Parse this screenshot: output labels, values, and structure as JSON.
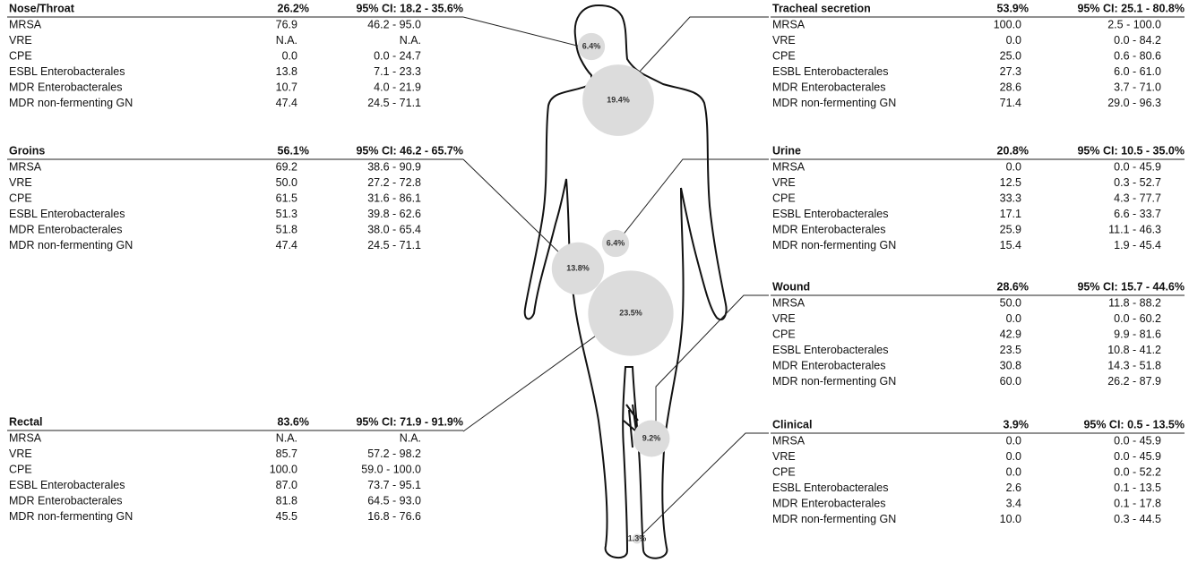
{
  "panels": [
    {
      "title": "Nose/Throat",
      "percent": "26.2%",
      "ci": "95% CI: 18.2 -  35.6%",
      "rows": [
        [
          "MRSA",
          "76.9",
          "46.2 -  95.0"
        ],
        [
          "VRE",
          "N.A.",
          "N.A."
        ],
        [
          "CPE",
          "0.0",
          "0.0 -  24.7"
        ],
        [
          "ESBL Enterobacterales",
          "13.8",
          "7.1 -  23.3"
        ],
        [
          "MDR Enterobacterales",
          "10.7",
          "4.0 -  21.9"
        ],
        [
          "MDR non-fermenting GN",
          "47.4",
          "24.5 -  71.1"
        ]
      ]
    },
    {
      "title": "Groins",
      "percent": "56.1%",
      "ci": "95% CI: 46.2 -  65.7%",
      "rows": [
        [
          "MRSA",
          "69.2",
          "38.6 -  90.9"
        ],
        [
          "VRE",
          "50.0",
          "27.2 -  72.8"
        ],
        [
          "CPE",
          "61.5",
          "31.6 -  86.1"
        ],
        [
          "ESBL Enterobacterales",
          "51.3",
          "39.8 -  62.6"
        ],
        [
          "MDR Enterobacterales",
          "51.8",
          "38.0 -  65.4"
        ],
        [
          "MDR non-fermenting GN",
          "47.4",
          "24.5 -  71.1"
        ]
      ]
    },
    {
      "title": "Rectal",
      "percent": "83.6%",
      "ci": "95% CI: 71.9 -  91.9%",
      "rows": [
        [
          "MRSA",
          "N.A.",
          "N.A."
        ],
        [
          "VRE",
          "85.7",
          "57.2 -  98.2"
        ],
        [
          "CPE",
          "100.0",
          "59.0 - 100.0"
        ],
        [
          "ESBL Enterobacterales",
          "87.0",
          "73.7 -  95.1"
        ],
        [
          "MDR Enterobacterales",
          "81.8",
          "64.5 -  93.0"
        ],
        [
          "MDR non-fermenting GN",
          "45.5",
          "16.8 -  76.6"
        ]
      ]
    },
    {
      "title": "Tracheal secretion",
      "percent": "53.9%",
      "ci": "95% CI: 25.1 -  80.8%",
      "rows": [
        [
          "MRSA",
          "100.0",
          "2.5 - 100.0"
        ],
        [
          "VRE",
          "0.0",
          "0.0 -  84.2"
        ],
        [
          "CPE",
          "25.0",
          "0.6 -  80.6"
        ],
        [
          "ESBL Enterobacterales",
          "27.3",
          "6.0 -  61.0"
        ],
        [
          "MDR Enterobacterales",
          "28.6",
          "3.7 -  71.0"
        ],
        [
          "MDR non-fermenting GN",
          "71.4",
          "29.0 -  96.3"
        ]
      ]
    },
    {
      "title": "Urine",
      "percent": "20.8%",
      "ci": "95% CI: 10.5 -  35.0%",
      "rows": [
        [
          "MRSA",
          "0.0",
          "0.0 -  45.9"
        ],
        [
          "VRE",
          "12.5",
          "0.3 -  52.7"
        ],
        [
          "CPE",
          "33.3",
          "4.3 -  77.7"
        ],
        [
          "ESBL Enterobacterales",
          "17.1",
          "6.6 -  33.7"
        ],
        [
          "MDR Enterobacterales",
          "25.9",
          "11.1 -  46.3"
        ],
        [
          "MDR non-fermenting GN",
          "15.4",
          "1.9 -  45.4"
        ]
      ]
    },
    {
      "title": "Wound",
      "percent": "28.6%",
      "ci": "95% CI: 15.7 -  44.6%",
      "rows": [
        [
          "MRSA",
          "50.0",
          "11.8 -  88.2"
        ],
        [
          "VRE",
          "0.0",
          "0.0 -  60.2"
        ],
        [
          "CPE",
          "42.9",
          "9.9 -  81.6"
        ],
        [
          "ESBL Enterobacterales",
          "23.5",
          "10.8 -  41.2"
        ],
        [
          "MDR Enterobacterales",
          "30.8",
          "14.3 -  51.8"
        ],
        [
          "MDR non-fermenting GN",
          "60.0",
          "26.2 -  87.9"
        ]
      ]
    },
    {
      "title": "Clinical",
      "percent": "3.9%",
      "ci": "95% CI:  0.5 -  13.5%",
      "rows": [
        [
          "MRSA",
          "0.0",
          "0.0 -  45.9"
        ],
        [
          "VRE",
          "0.0",
          "0.0 -  45.9"
        ],
        [
          "CPE",
          "0.0",
          "0.0 -  52.2"
        ],
        [
          "ESBL Enterobacterales",
          "2.6",
          "0.1 -  13.5"
        ],
        [
          "MDR Enterobacterales",
          "3.4",
          "0.1 -  17.8"
        ],
        [
          "MDR non-fermenting GN",
          "10.0",
          "0.3 -  44.5"
        ]
      ]
    }
  ],
  "bubbles": [
    {
      "label": "6.4%",
      "value": 6.4
    },
    {
      "label": "19.4%",
      "value": 19.4
    },
    {
      "label": "6.4%",
      "value": 6.4
    },
    {
      "label": "13.8%",
      "value": 13.8
    },
    {
      "label": "23.5%",
      "value": 23.5
    },
    {
      "label": "9.2%",
      "value": 9.2
    },
    {
      "label": "1.3%",
      "value": 1.3
    }
  ]
}
